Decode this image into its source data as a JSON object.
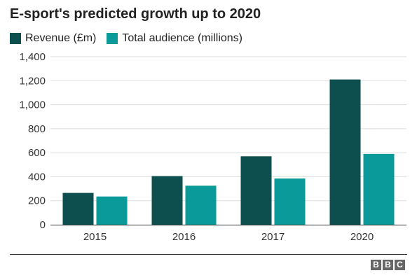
{
  "chart_data": {
    "type": "bar",
    "title": "E-sport's predicted growth up to 2020",
    "categories": [
      "2015",
      "2016",
      "2017",
      "2020"
    ],
    "series": [
      {
        "name": "Revenue (£m)",
        "values": [
          265,
          405,
          570,
          1210
        ],
        "color": "#0d4e4e"
      },
      {
        "name": "Total audience (millions)",
        "values": [
          235,
          325,
          385,
          590
        ],
        "color": "#0a9a9a"
      }
    ],
    "xlabel": "",
    "ylabel": "",
    "ylim": [
      0,
      1400
    ],
    "yticks": [
      0,
      200,
      400,
      600,
      800,
      1000,
      1200,
      1400
    ],
    "ytick_labels": [
      "0",
      "200",
      "400",
      "600",
      "800",
      "1,000",
      "1,200",
      "1,400"
    ],
    "grid": true,
    "legend": "top-left"
  },
  "footer": {
    "logo_letters": [
      "B",
      "B",
      "C"
    ],
    "logo_color": "#666666"
  }
}
